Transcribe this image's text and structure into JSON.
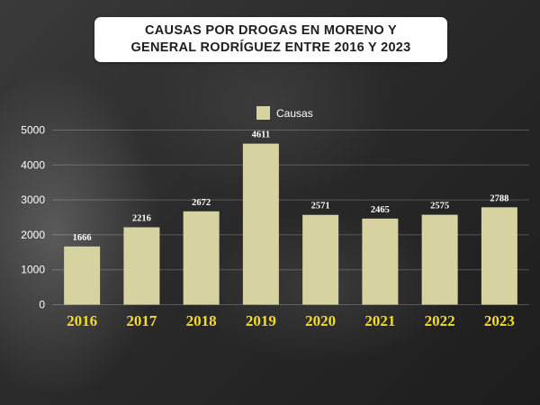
{
  "chart_data": {
    "type": "bar",
    "title": "CAUSAS POR DROGAS EN MORENO Y\nGENERAL RODRÍGUEZ ENTRE 2016 Y 2023",
    "categories": [
      "2016",
      "2017",
      "2018",
      "2019",
      "2020",
      "2021",
      "2022",
      "2023"
    ],
    "series": [
      {
        "name": "Causas",
        "values": [
          1666,
          2216,
          2672,
          4611,
          2571,
          2465,
          2575,
          2788
        ],
        "color": "#d6d3a1"
      }
    ],
    "data_labels": [
      "1666",
      "2216",
      "2672",
      "4611",
      "2571",
      "2465",
      "2575",
      "2788"
    ],
    "yticks": [
      "0",
      "1000",
      "2000",
      "3000",
      "4000",
      "5000"
    ],
    "ylim": [
      0,
      5000
    ],
    "grid": true,
    "legend_position": "top-center",
    "xtick_color": "#f2dc2a"
  }
}
